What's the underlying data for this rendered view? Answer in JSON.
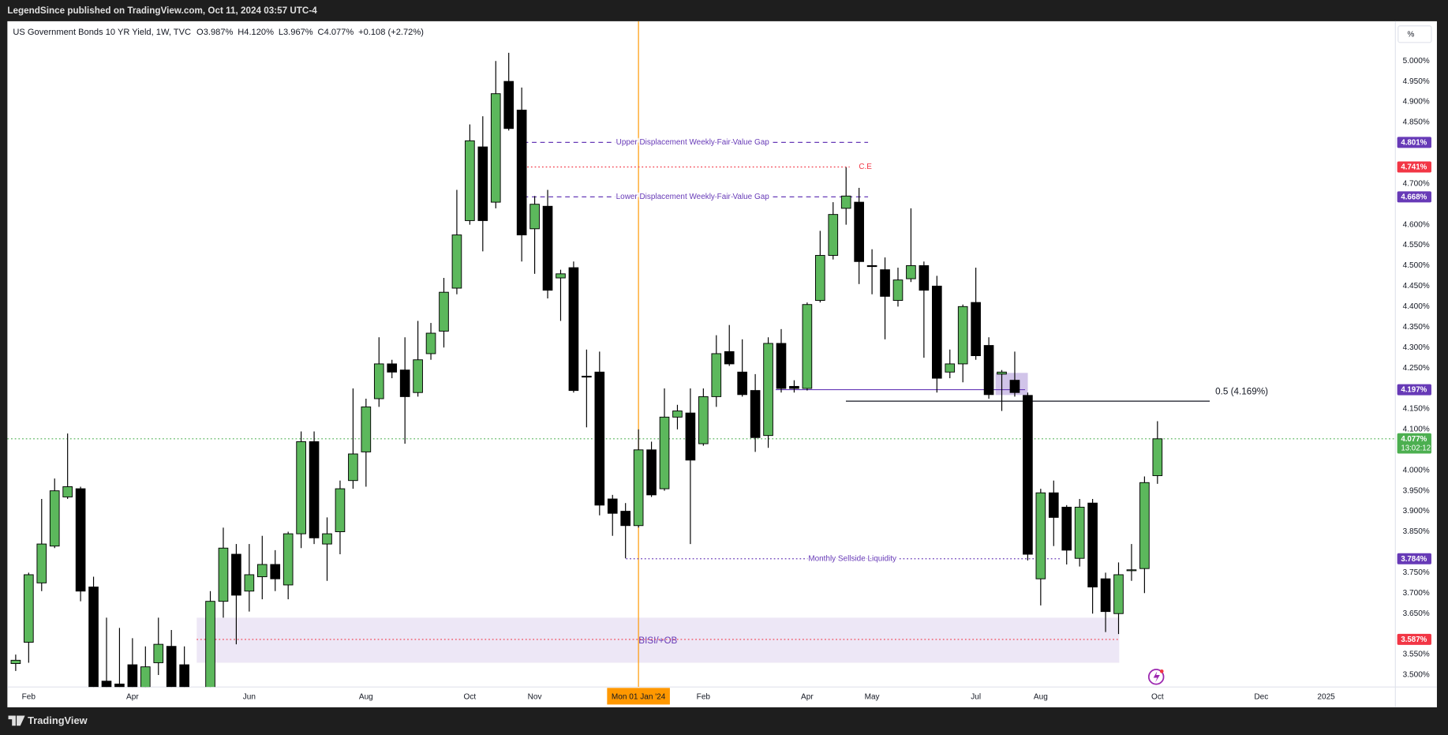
{
  "chart_data": {
    "type": "candlestick",
    "published": "LegendSince published on TradingView.com, Oct 11, 2024 03:57 UTC-4",
    "title": "US Government Bonds 10 YR Yield, 1W, TVC",
    "ohlc_labels": [
      "O3.987%",
      "H4.120%",
      "L3.967%",
      "C4.077%",
      "+0.108 (+2.72%)"
    ],
    "brand": "TradingView",
    "scale_button": "%",
    "up_color": "#5cb85c",
    "down_color": "#000000",
    "crosshair_color": "#ff9800",
    "categories": [
      null,
      "Feb",
      null,
      null,
      null,
      null,
      null,
      null,
      null,
      "Apr",
      null,
      null,
      null,
      null,
      null,
      null,
      null,
      null,
      "Jun",
      null,
      null,
      null,
      null,
      null,
      null,
      null,
      null,
      "Aug",
      null,
      null,
      null,
      null,
      null,
      null,
      null,
      "Oct",
      null,
      null,
      null,
      null,
      "Nov",
      null,
      null,
      null,
      null,
      null,
      null,
      null,
      "Mon 01 Jan '24",
      null,
      null,
      null,
      null,
      "Feb",
      null,
      null,
      null,
      null,
      null,
      null,
      null,
      "Apr",
      null,
      null,
      null,
      null,
      "May",
      null,
      null,
      null,
      null,
      null,
      null,
      null,
      "Jul",
      null,
      null,
      null,
      null,
      "Aug",
      null,
      null,
      null,
      null,
      null,
      null,
      null,
      null,
      "Oct",
      null,
      null,
      null,
      null,
      null,
      null,
      null,
      "Dec",
      null,
      null,
      null,
      null,
      "2025"
    ],
    "open": [
      3.528,
      3.58,
      3.725,
      3.815,
      3.935,
      3.955,
      3.715,
      3.485,
      3.478,
      3.525,
      3.47,
      3.53,
      3.57,
      3.525,
      null,
      3.45,
      3.68,
      3.795,
      3.705,
      3.74,
      3.77,
      3.72,
      3.845,
      4.07,
      3.82,
      3.85,
      3.975,
      4.045,
      4.175,
      4.26,
      4.245,
      4.19,
      4.285,
      4.34,
      4.445,
      4.61,
      4.79,
      4.655,
      4.95,
      4.88,
      4.59,
      4.645,
      4.47,
      4.495,
      4.23,
      4.24,
      3.93,
      3.9,
      3.865,
      4.05,
      3.955,
      4.13,
      4.14,
      4.065,
      4.18,
      4.29,
      4.24,
      4.195,
      4.085,
      4.31,
      4.205,
      4.2,
      4.415,
      4.525,
      4.64,
      4.655,
      4.5,
      4.49,
      4.415,
      4.468,
      4.5,
      4.45,
      4.24,
      4.26,
      4.41,
      4.305,
      4.235,
      4.22,
      4.183,
      3.735,
      3.945,
      3.91,
      3.785,
      3.92,
      3.735,
      3.65,
      3.755,
      3.76,
      3.987,
      null,
      null,
      null,
      null,
      null,
      null,
      null,
      null,
      null,
      null,
      null,
      null,
      null
    ],
    "high": [
      3.55,
      3.75,
      3.93,
      3.98,
      4.09,
      3.96,
      3.74,
      3.64,
      3.615,
      3.59,
      3.57,
      3.64,
      3.61,
      3.57,
      null,
      3.705,
      3.86,
      3.82,
      3.82,
      3.84,
      3.805,
      3.85,
      4.095,
      4.095,
      3.885,
      3.975,
      4.2,
      4.175,
      4.325,
      4.27,
      4.325,
      4.365,
      4.36,
      4.47,
      4.685,
      4.845,
      4.865,
      5.0,
      5.02,
      4.935,
      4.67,
      4.685,
      4.49,
      4.51,
      4.295,
      4.29,
      3.94,
      3.92,
      4.1,
      4.07,
      4.2,
      4.16,
      4.2,
      4.2,
      4.33,
      4.355,
      4.32,
      4.235,
      4.325,
      4.345,
      4.22,
      4.41,
      4.585,
      4.655,
      4.74,
      4.69,
      4.54,
      4.52,
      4.495,
      4.64,
      4.51,
      4.475,
      4.295,
      4.405,
      4.495,
      4.325,
      4.245,
      4.29,
      4.19,
      3.955,
      3.975,
      3.915,
      3.93,
      3.93,
      3.75,
      3.775,
      3.82,
      3.985,
      4.12,
      null,
      null,
      null,
      null,
      null,
      null,
      null,
      null,
      null,
      null,
      null,
      null,
      null
    ],
    "low": [
      3.51,
      3.53,
      3.705,
      3.81,
      3.93,
      3.68,
      3.44,
      3.44,
      3.45,
      3.45,
      3.45,
      3.5,
      3.44,
      3.45,
      null,
      3.43,
      3.64,
      3.575,
      3.655,
      3.685,
      3.705,
      3.685,
      3.81,
      3.82,
      3.73,
      3.795,
      3.955,
      3.96,
      4.155,
      4.225,
      4.065,
      4.18,
      4.27,
      4.3,
      4.43,
      4.6,
      4.535,
      4.64,
      4.83,
      4.51,
      4.48,
      4.42,
      4.365,
      4.19,
      4.105,
      3.89,
      3.84,
      3.785,
      3.86,
      3.935,
      3.95,
      4.1,
      3.82,
      4.06,
      4.155,
      4.255,
      4.18,
      4.045,
      4.055,
      4.19,
      4.19,
      4.195,
      4.41,
      4.515,
      4.6,
      4.455,
      4.43,
      4.32,
      4.4,
      4.46,
      4.275,
      4.19,
      4.225,
      4.215,
      4.27,
      4.175,
      4.145,
      4.18,
      3.78,
      3.67,
      3.815,
      3.77,
      3.765,
      3.65,
      3.605,
      3.6,
      3.73,
      3.7,
      3.967,
      null,
      null,
      null,
      null,
      null,
      null,
      null,
      null,
      null,
      null,
      null,
      null,
      null
    ],
    "close": [
      3.536,
      3.745,
      3.82,
      3.95,
      3.96,
      3.705,
      3.46,
      3.47,
      3.47,
      3.47,
      3.52,
      3.575,
      3.46,
      3.47,
      null,
      3.68,
      3.81,
      3.695,
      3.745,
      3.77,
      3.735,
      3.845,
      4.07,
      3.835,
      3.845,
      3.955,
      4.04,
      4.155,
      4.26,
      4.24,
      4.18,
      4.27,
      4.335,
      4.435,
      4.575,
      4.805,
      4.61,
      4.92,
      4.835,
      4.575,
      4.65,
      4.44,
      4.48,
      4.195,
      4.228,
      3.915,
      3.895,
      3.865,
      4.05,
      3.94,
      4.13,
      4.145,
      4.025,
      4.18,
      4.285,
      4.26,
      4.185,
      4.08,
      4.31,
      4.2,
      4.2,
      4.405,
      4.525,
      4.625,
      4.67,
      4.51,
      4.498,
      4.425,
      4.465,
      4.5,
      4.44,
      4.225,
      4.26,
      4.4,
      4.28,
      4.185,
      4.24,
      4.19,
      3.795,
      3.945,
      3.885,
      3.805,
      3.91,
      3.715,
      3.655,
      3.745,
      3.757,
      3.97,
      4.077,
      null,
      null,
      null,
      null,
      null,
      null,
      null,
      null,
      null,
      null,
      null,
      null,
      null
    ],
    "ylim": [
      3.473,
      5.097
    ],
    "yticks": [
      {
        "value": 5.0,
        "label": "5.000%"
      },
      {
        "value": 4.95,
        "label": "4.950%"
      },
      {
        "value": 4.9,
        "label": "4.900%"
      },
      {
        "value": 4.85,
        "label": "4.850%"
      },
      {
        "value": 4.7,
        "label": "4.700%"
      },
      {
        "value": 4.6,
        "label": "4.600%"
      },
      {
        "value": 4.55,
        "label": "4.550%"
      },
      {
        "value": 4.5,
        "label": "4.500%"
      },
      {
        "value": 4.45,
        "label": "4.450%"
      },
      {
        "value": 4.4,
        "label": "4.400%"
      },
      {
        "value": 4.35,
        "label": "4.350%"
      },
      {
        "value": 4.3,
        "label": "4.300%"
      },
      {
        "value": 4.25,
        "label": "4.250%"
      },
      {
        "value": 4.15,
        "label": "4.150%"
      },
      {
        "value": 4.1,
        "label": "4.100%"
      },
      {
        "value": 4.0,
        "label": "4.000%"
      },
      {
        "value": 3.95,
        "label": "3.950%"
      },
      {
        "value": 3.9,
        "label": "3.900%"
      },
      {
        "value": 3.85,
        "label": "3.850%"
      },
      {
        "value": 3.75,
        "label": "3.750%"
      },
      {
        "value": 3.7,
        "label": "3.700%"
      },
      {
        "value": 3.65,
        "label": "3.650%"
      },
      {
        "value": 3.55,
        "label": "3.550%"
      },
      {
        "value": 3.5,
        "label": "3.500%"
      }
    ],
    "levels": [
      {
        "value": 4.801,
        "label": "4.801%",
        "color": "#673ab7"
      },
      {
        "value": 4.741,
        "label": "4.741%",
        "color": "#f23645"
      },
      {
        "value": 4.668,
        "label": "4.668%",
        "color": "#673ab7"
      },
      {
        "value": 4.197,
        "label": "4.197%",
        "color": "#673ab7"
      },
      {
        "value": 4.077,
        "label": "4.077%",
        "color": "#4caf50",
        "countdown": "13:02:12"
      },
      {
        "value": 3.784,
        "label": "3.784%",
        "color": "#673ab7"
      },
      {
        "value": 3.587,
        "label": "3.587%",
        "color": "#f23645"
      }
    ],
    "annotations": [
      {
        "text": "Upper Displacement Weekly Fair Value Gap",
        "value": 4.801,
        "color": "#673ab7",
        "style": "dashed"
      },
      {
        "text": "C.E",
        "value": 4.741,
        "color": "#f23645",
        "style": "dotted"
      },
      {
        "text": "Lower Displacement Weekly Fair Value Gap",
        "value": 4.668,
        "color": "#673ab7",
        "style": "dashed"
      },
      {
        "text": "0.5 (4.169%)",
        "value": 4.169,
        "color": "#131722",
        "style": "solid"
      },
      {
        "text": "Monthly Sellside Liquidity",
        "value": 3.784,
        "color": "#673ab7",
        "style": "dotted"
      }
    ],
    "zones": [
      {
        "text": "BISI/+OB",
        "from": 3.53,
        "to": 3.64,
        "color": "#ede7f6"
      },
      {
        "from": 4.184,
        "to": 4.238,
        "color": "#d1c4e9"
      }
    ]
  }
}
